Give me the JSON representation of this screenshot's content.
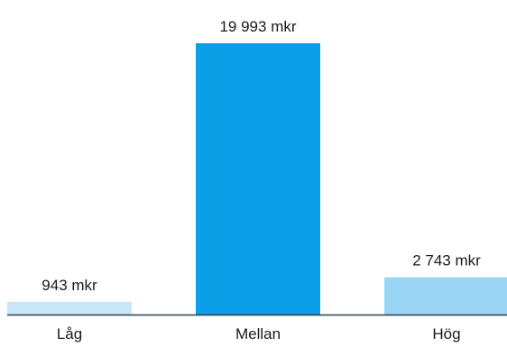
{
  "chart_data": {
    "type": "bar",
    "categories": [
      "Låg",
      "Mellan",
      "Hög"
    ],
    "values": [
      943,
      19993,
      2743
    ],
    "value_labels": [
      "943 mkr",
      "19 993 mkr",
      "2 743 mkr"
    ],
    "colors": [
      "#c9e6f8",
      "#0a9fe6",
      "#9ad6f4"
    ],
    "axis_color": "#2f3b52",
    "unit": "mkr",
    "ylim": [
      0,
      19993
    ],
    "grid": false,
    "legend": "none"
  }
}
